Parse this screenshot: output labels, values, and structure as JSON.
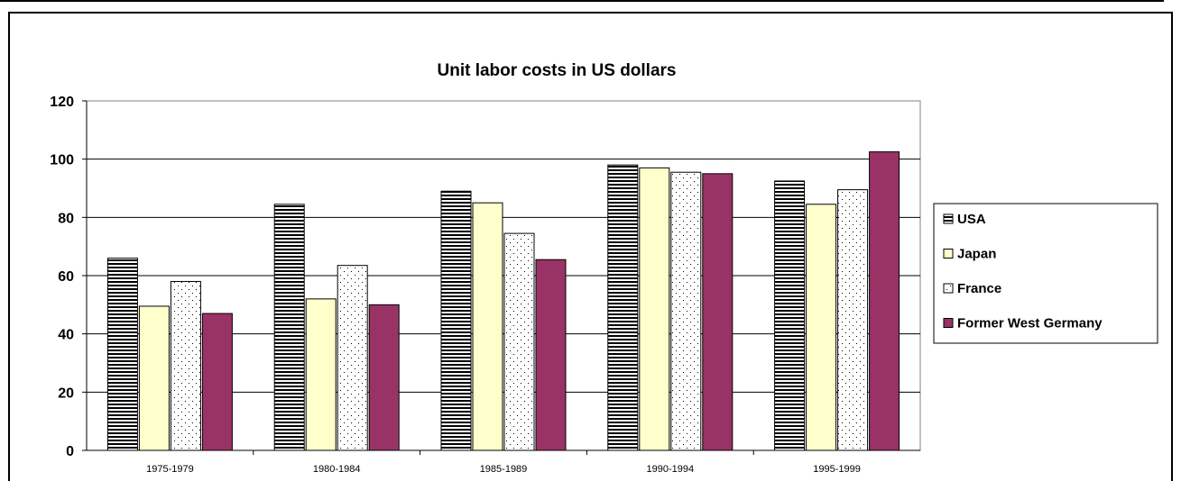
{
  "chart_data": {
    "type": "bar",
    "title": "Unit labor costs in US dollars",
    "categories": [
      "1975-1979",
      "1980-1984",
      "1985-1989",
      "1990-1994",
      "1995-1999"
    ],
    "series": [
      {
        "name": "USA",
        "values": [
          66,
          84.5,
          89,
          98,
          92.5
        ],
        "fill": "#ffffff",
        "pattern": "horizontal-stripes"
      },
      {
        "name": "Japan",
        "values": [
          49.5,
          52,
          85,
          97,
          84.5
        ],
        "fill": "#ffffcc",
        "pattern": "solid"
      },
      {
        "name": "France",
        "values": [
          58,
          63.5,
          74.5,
          95.5,
          89.5
        ],
        "fill": "#ffffff",
        "pattern": "dots"
      },
      {
        "name": "Former West Germany",
        "values": [
          47,
          50,
          65.5,
          95,
          102.5
        ],
        "fill": "#993366",
        "pattern": "solid"
      }
    ],
    "yticks": [
      "0",
      "20",
      "40",
      "60",
      "80",
      "100",
      "120"
    ],
    "ylim": [
      0,
      120
    ],
    "grid": true,
    "legend_position": "right"
  }
}
